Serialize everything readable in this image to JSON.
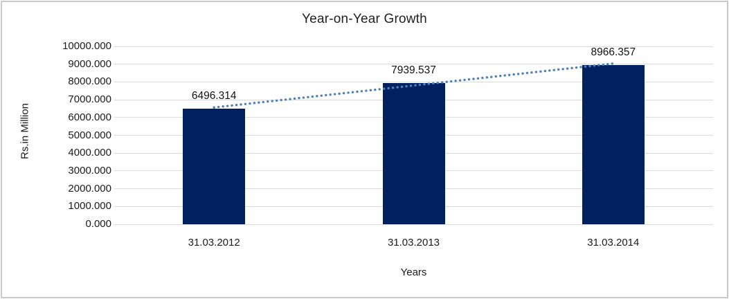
{
  "chart_data": {
    "type": "bar",
    "title": "Year-on-Year Growth",
    "xlabel": "Years",
    "ylabel": "Rs.in Million",
    "categories": [
      "31.03.2012",
      "31.03.2013",
      "31.03.2014"
    ],
    "values": [
      6496.314,
      7939.537,
      8966.357
    ],
    "data_labels": [
      "6496.314",
      "7939.537",
      "8966.357"
    ],
    "ylim": [
      0,
      10000
    ],
    "ytick_step": 1000,
    "ytick_labels": [
      "10000.000",
      "9000.000",
      "8000.000",
      "7000.000",
      "6000.000",
      "5000.000",
      "4000.000",
      "3000.000",
      "2000.000",
      "1000.000",
      "0.000"
    ],
    "grid": true,
    "legend": "none",
    "bar_color": "#002060",
    "trendline": {
      "type": "linear",
      "style": "dotted",
      "color": "#4f81bd"
    },
    "gridline_color": "#d9d9d9",
    "frame_border_color": "#c9c9c9"
  }
}
